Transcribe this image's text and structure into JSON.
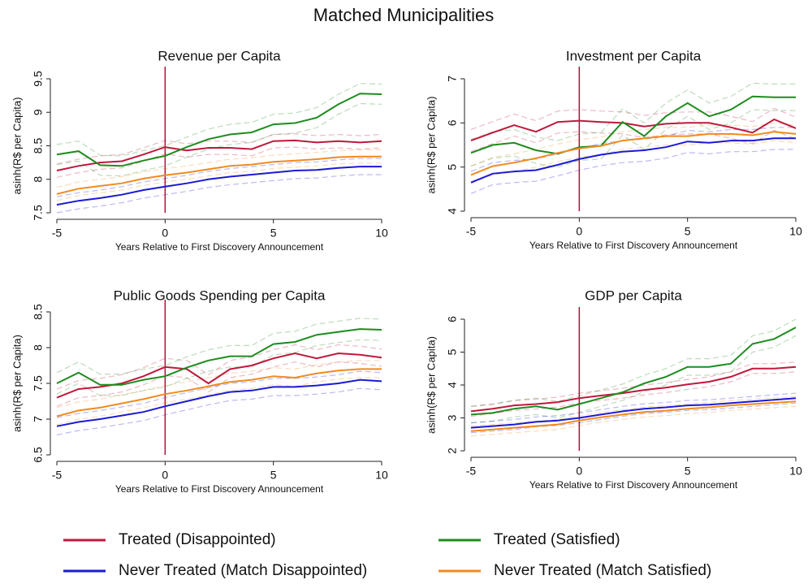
{
  "title": "Matched Municipalities",
  "chart_data": [
    {
      "type": "line",
      "title": "Revenue per Capita",
      "xlabel": "Years Relative to First Discovery Announcement",
      "ylabel": "asinh(R$ per Capita)",
      "x": [
        -5,
        -4,
        -3,
        -2,
        -1,
        0,
        1,
        2,
        3,
        4,
        5,
        6,
        7,
        8,
        9,
        10
      ],
      "xlim": [
        -5,
        10
      ],
      "xticks": [
        -5,
        0,
        5,
        10
      ],
      "ylim": [
        7.5,
        9.5
      ],
      "yticks": [
        7.5,
        8,
        8.5,
        9,
        9.5
      ],
      "vline": 0,
      "vline_color": "#b0103a",
      "series": [
        {
          "name": "Treated (Disappointed)",
          "color": "#c0183c",
          "values": [
            8.13,
            8.2,
            8.25,
            8.27,
            8.37,
            8.48,
            8.43,
            8.47,
            8.47,
            8.45,
            8.57,
            8.58,
            8.55,
            8.57,
            8.55,
            8.57
          ],
          "ci_lower": [
            8.03,
            8.1,
            8.15,
            8.17,
            8.27,
            8.38,
            8.33,
            8.37,
            8.37,
            8.35,
            8.47,
            8.48,
            8.45,
            8.47,
            8.45,
            8.47
          ],
          "ci_upper": [
            8.23,
            8.3,
            8.35,
            8.37,
            8.47,
            8.58,
            8.53,
            8.57,
            8.57,
            8.55,
            8.67,
            8.68,
            8.65,
            8.67,
            8.65,
            8.67
          ]
        },
        {
          "name": "Treated (Satisfied)",
          "color": "#1e8c1e",
          "values": [
            8.37,
            8.42,
            8.21,
            8.2,
            8.28,
            8.35,
            8.48,
            8.6,
            8.67,
            8.7,
            8.82,
            8.84,
            8.92,
            9.12,
            9.28,
            9.27
          ],
          "ci_lower": [
            8.22,
            8.27,
            8.06,
            8.05,
            8.13,
            8.2,
            8.33,
            8.45,
            8.52,
            8.55,
            8.67,
            8.69,
            8.77,
            8.97,
            9.13,
            9.12
          ],
          "ci_upper": [
            8.52,
            8.57,
            8.36,
            8.35,
            8.43,
            8.5,
            8.63,
            8.75,
            8.82,
            8.85,
            8.97,
            8.99,
            9.07,
            9.27,
            9.43,
            9.42
          ]
        },
        {
          "name": "Never Treated (Match Disappointed)",
          "color": "#1a1ad6",
          "values": [
            7.62,
            7.68,
            7.72,
            7.77,
            7.84,
            7.89,
            7.94,
            8.0,
            8.04,
            8.07,
            8.1,
            8.13,
            8.14,
            8.17,
            8.19,
            8.19
          ],
          "ci_lower": [
            7.5,
            7.56,
            7.6,
            7.65,
            7.72,
            7.77,
            7.82,
            7.88,
            7.92,
            7.95,
            7.98,
            8.01,
            8.02,
            8.05,
            8.07,
            8.07
          ],
          "ci_upper": [
            7.74,
            7.8,
            7.84,
            7.89,
            7.96,
            8.01,
            8.06,
            8.12,
            8.16,
            8.19,
            8.22,
            8.25,
            8.26,
            8.29,
            8.31,
            8.31
          ]
        },
        {
          "name": "Never Treated (Match Satisfied)",
          "color": "#f28a1e",
          "values": [
            7.78,
            7.86,
            7.9,
            7.94,
            8.01,
            8.06,
            8.1,
            8.15,
            8.2,
            8.22,
            8.26,
            8.28,
            8.3,
            8.33,
            8.34,
            8.34
          ],
          "ci_lower": [
            7.68,
            7.76,
            7.8,
            7.84,
            7.91,
            7.96,
            8.0,
            8.05,
            8.1,
            8.12,
            8.16,
            8.18,
            8.2,
            8.23,
            8.24,
            8.24
          ],
          "ci_upper": [
            7.88,
            7.96,
            8.0,
            8.04,
            8.11,
            8.16,
            8.2,
            8.25,
            8.3,
            8.32,
            8.36,
            8.38,
            8.4,
            8.43,
            8.44,
            8.44
          ]
        }
      ]
    },
    {
      "type": "line",
      "title": "Investment per Capita",
      "xlabel": "Years Relative to First Discovery Announcement",
      "ylabel": "asinh(R$ per Capita)",
      "x": [
        -5,
        -4,
        -3,
        -2,
        -1,
        0,
        1,
        2,
        3,
        4,
        5,
        6,
        7,
        8,
        9,
        10
      ],
      "xlim": [
        -5,
        10
      ],
      "xticks": [
        -5,
        0,
        5,
        10
      ],
      "ylim": [
        4,
        7
      ],
      "yticks": [
        4,
        5,
        6,
        7
      ],
      "vline": 0,
      "vline_color": "#b0103a",
      "series": [
        {
          "color": "#c0183c",
          "values": [
            5.6,
            5.78,
            5.95,
            5.8,
            6.02,
            6.05,
            6.02,
            6.0,
            5.92,
            5.98,
            6.0,
            6.0,
            5.9,
            5.78,
            6.08,
            5.88
          ],
          "ci_lower": [
            5.35,
            5.53,
            5.7,
            5.55,
            5.77,
            5.8,
            5.77,
            5.75,
            5.67,
            5.73,
            5.75,
            5.75,
            5.65,
            5.53,
            5.83,
            5.63
          ],
          "ci_upper": [
            5.85,
            6.03,
            6.2,
            6.05,
            6.27,
            6.3,
            6.27,
            6.25,
            6.17,
            6.23,
            6.25,
            6.25,
            6.15,
            6.03,
            6.33,
            6.13
          ]
        },
        {
          "color": "#1e8c1e",
          "values": [
            5.32,
            5.5,
            5.55,
            5.38,
            5.3,
            5.45,
            5.48,
            6.02,
            5.7,
            6.15,
            6.45,
            6.15,
            6.3,
            6.6,
            6.58,
            6.58
          ],
          "ci_lower": [
            5.02,
            5.2,
            5.25,
            5.08,
            5.0,
            5.15,
            5.18,
            5.72,
            5.4,
            5.85,
            6.15,
            5.85,
            6.0,
            6.3,
            6.28,
            6.28
          ],
          "ci_upper": [
            5.62,
            5.8,
            5.85,
            5.68,
            5.6,
            5.75,
            5.78,
            6.32,
            6.0,
            6.45,
            6.75,
            6.45,
            6.6,
            6.9,
            6.88,
            6.88
          ]
        },
        {
          "color": "#1a1ad6",
          "values": [
            4.65,
            4.85,
            4.9,
            4.93,
            5.05,
            5.18,
            5.28,
            5.35,
            5.38,
            5.45,
            5.58,
            5.55,
            5.6,
            5.6,
            5.65,
            5.65
          ],
          "ci_lower": [
            4.4,
            4.6,
            4.65,
            4.68,
            4.8,
            4.93,
            5.03,
            5.1,
            5.13,
            5.2,
            5.33,
            5.3,
            5.35,
            5.35,
            5.4,
            5.4
          ],
          "ci_upper": [
            4.9,
            5.1,
            5.15,
            5.18,
            5.3,
            5.43,
            5.53,
            5.6,
            5.63,
            5.7,
            5.83,
            5.8,
            5.85,
            5.85,
            5.9,
            5.9
          ]
        },
        {
          "color": "#f28a1e",
          "values": [
            4.82,
            5.02,
            5.1,
            5.2,
            5.32,
            5.42,
            5.48,
            5.6,
            5.65,
            5.7,
            5.7,
            5.75,
            5.75,
            5.72,
            5.8,
            5.75
          ],
          "ci_lower": [
            4.62,
            4.82,
            4.9,
            5.0,
            5.12,
            5.22,
            5.28,
            5.4,
            5.45,
            5.5,
            5.5,
            5.55,
            5.55,
            5.52,
            5.6,
            5.55
          ],
          "ci_upper": [
            5.02,
            5.22,
            5.3,
            5.4,
            5.52,
            5.62,
            5.68,
            5.8,
            5.85,
            5.9,
            5.9,
            5.95,
            5.95,
            5.92,
            6.0,
            5.95
          ]
        }
      ]
    },
    {
      "type": "line",
      "title": "Public Goods Spending per Capita",
      "xlabel": "Years Relative to First Discovery Announcement",
      "ylabel": "asinh(R$ per Capita)",
      "x": [
        -5,
        -4,
        -3,
        -2,
        -1,
        0,
        1,
        2,
        3,
        4,
        5,
        6,
        7,
        8,
        9,
        10
      ],
      "xlim": [
        -5,
        10
      ],
      "xticks": [
        -5,
        0,
        5,
        10
      ],
      "ylim": [
        6.5,
        8.5
      ],
      "yticks": [
        6.5,
        7,
        7.5,
        8,
        8.5
      ],
      "vline": 0,
      "vline_color": "#b0103a",
      "series": [
        {
          "color": "#c0183c",
          "values": [
            7.3,
            7.42,
            7.45,
            7.5,
            7.6,
            7.73,
            7.7,
            7.5,
            7.7,
            7.75,
            7.85,
            7.92,
            7.85,
            7.92,
            7.9,
            7.86
          ],
          "ci_lower": [
            7.18,
            7.3,
            7.33,
            7.38,
            7.48,
            7.61,
            7.58,
            7.38,
            7.58,
            7.63,
            7.73,
            7.8,
            7.73,
            7.8,
            7.78,
            7.74
          ],
          "ci_upper": [
            7.42,
            7.54,
            7.57,
            7.62,
            7.72,
            7.85,
            7.82,
            7.62,
            7.82,
            7.87,
            7.97,
            8.04,
            7.97,
            8.04,
            8.02,
            7.98
          ]
        },
        {
          "color": "#1e8c1e",
          "values": [
            7.5,
            7.65,
            7.48,
            7.48,
            7.55,
            7.6,
            7.72,
            7.82,
            7.88,
            7.88,
            8.05,
            8.08,
            8.18,
            8.22,
            8.26,
            8.25
          ],
          "ci_lower": [
            7.35,
            7.5,
            7.33,
            7.33,
            7.4,
            7.45,
            7.57,
            7.67,
            7.73,
            7.73,
            7.9,
            7.93,
            8.03,
            8.07,
            8.11,
            8.1
          ],
          "ci_upper": [
            7.65,
            7.8,
            7.63,
            7.63,
            7.7,
            7.75,
            7.87,
            7.97,
            8.03,
            8.03,
            8.2,
            8.23,
            8.33,
            8.37,
            8.41,
            8.4
          ]
        },
        {
          "color": "#1a1ad6",
          "values": [
            6.9,
            6.96,
            7.0,
            7.05,
            7.1,
            7.18,
            7.25,
            7.32,
            7.38,
            7.4,
            7.45,
            7.45,
            7.47,
            7.5,
            7.55,
            7.53
          ],
          "ci_lower": [
            6.78,
            6.84,
            6.88,
            6.93,
            6.98,
            7.06,
            7.13,
            7.2,
            7.26,
            7.28,
            7.33,
            7.33,
            7.35,
            7.38,
            7.43,
            7.41
          ],
          "ci_upper": [
            7.02,
            7.08,
            7.12,
            7.17,
            7.22,
            7.3,
            7.37,
            7.44,
            7.5,
            7.52,
            7.57,
            7.57,
            7.59,
            7.62,
            7.67,
            7.65
          ]
        },
        {
          "color": "#f28a1e",
          "values": [
            7.04,
            7.12,
            7.16,
            7.22,
            7.28,
            7.35,
            7.4,
            7.46,
            7.52,
            7.55,
            7.6,
            7.58,
            7.64,
            7.68,
            7.7,
            7.7
          ],
          "ci_lower": [
            6.92,
            7.0,
            7.04,
            7.1,
            7.16,
            7.23,
            7.28,
            7.34,
            7.4,
            7.43,
            7.48,
            7.46,
            7.52,
            7.56,
            7.58,
            7.58
          ],
          "ci_upper": [
            7.16,
            7.24,
            7.28,
            7.34,
            7.4,
            7.47,
            7.52,
            7.58,
            7.64,
            7.67,
            7.72,
            7.7,
            7.76,
            7.8,
            7.82,
            7.82
          ]
        }
      ]
    },
    {
      "type": "line",
      "title": "GDP per Capita",
      "xlabel": "Years Relative to First Discovery Announcement",
      "ylabel": "asinh(R$ per Capita)",
      "x": [
        -5,
        -4,
        -3,
        -2,
        -1,
        0,
        1,
        2,
        3,
        4,
        5,
        6,
        7,
        8,
        9,
        10
      ],
      "xlim": [
        -5,
        10
      ],
      "xticks": [
        -5,
        0,
        5,
        10
      ],
      "ylim": [
        2,
        6
      ],
      "yticks": [
        2,
        3,
        4,
        5,
        6
      ],
      "vline": 0,
      "vline_color": "#b0103a",
      "series": [
        {
          "color": "#c0183c",
          "values": [
            3.2,
            3.28,
            3.38,
            3.42,
            3.48,
            3.6,
            3.68,
            3.75,
            3.85,
            3.92,
            4.02,
            4.1,
            4.25,
            4.5,
            4.5,
            4.55
          ],
          "ci_lower": [
            3.05,
            3.13,
            3.23,
            3.27,
            3.33,
            3.45,
            3.53,
            3.6,
            3.7,
            3.77,
            3.87,
            3.95,
            4.1,
            4.35,
            4.35,
            4.4
          ],
          "ci_upper": [
            3.35,
            3.43,
            3.53,
            3.57,
            3.63,
            3.75,
            3.83,
            3.9,
            4.0,
            4.07,
            4.17,
            4.25,
            4.4,
            4.65,
            4.65,
            4.7
          ]
        },
        {
          "color": "#1e8c1e",
          "values": [
            3.1,
            3.15,
            3.28,
            3.35,
            3.25,
            3.42,
            3.6,
            3.78,
            4.05,
            4.25,
            4.55,
            4.55,
            4.65,
            5.25,
            5.4,
            5.75
          ],
          "ci_lower": [
            2.85,
            2.9,
            3.03,
            3.1,
            3.0,
            3.17,
            3.35,
            3.53,
            3.8,
            4.0,
            4.3,
            4.3,
            4.4,
            5.0,
            5.15,
            5.5
          ],
          "ci_upper": [
            3.35,
            3.4,
            3.53,
            3.6,
            3.5,
            3.67,
            3.85,
            4.03,
            4.3,
            4.5,
            4.8,
            4.8,
            4.9,
            5.5,
            5.65,
            6.0
          ]
        },
        {
          "color": "#1a1ad6",
          "values": [
            2.7,
            2.75,
            2.8,
            2.88,
            2.92,
            3.0,
            3.1,
            3.2,
            3.28,
            3.32,
            3.38,
            3.4,
            3.45,
            3.5,
            3.55,
            3.6
          ],
          "ci_lower": [
            2.55,
            2.6,
            2.65,
            2.73,
            2.77,
            2.85,
            2.95,
            3.05,
            3.13,
            3.17,
            3.23,
            3.25,
            3.3,
            3.35,
            3.4,
            3.45
          ],
          "ci_upper": [
            2.85,
            2.9,
            2.95,
            3.03,
            3.07,
            3.15,
            3.25,
            3.35,
            3.43,
            3.47,
            3.53,
            3.55,
            3.6,
            3.65,
            3.7,
            3.75
          ]
        },
        {
          "color": "#f28a1e",
          "values": [
            2.6,
            2.65,
            2.7,
            2.75,
            2.8,
            2.92,
            3.02,
            3.1,
            3.18,
            3.22,
            3.28,
            3.32,
            3.38,
            3.42,
            3.46,
            3.5
          ],
          "ci_lower": [
            2.45,
            2.5,
            2.55,
            2.6,
            2.65,
            2.77,
            2.87,
            2.95,
            3.03,
            3.07,
            3.13,
            3.17,
            3.23,
            3.27,
            3.31,
            3.35
          ],
          "ci_upper": [
            2.75,
            2.8,
            2.85,
            2.9,
            2.95,
            3.07,
            3.17,
            3.25,
            3.33,
            3.37,
            3.43,
            3.47,
            3.53,
            3.57,
            3.61,
            3.65
          ]
        }
      ]
    }
  ]
}
